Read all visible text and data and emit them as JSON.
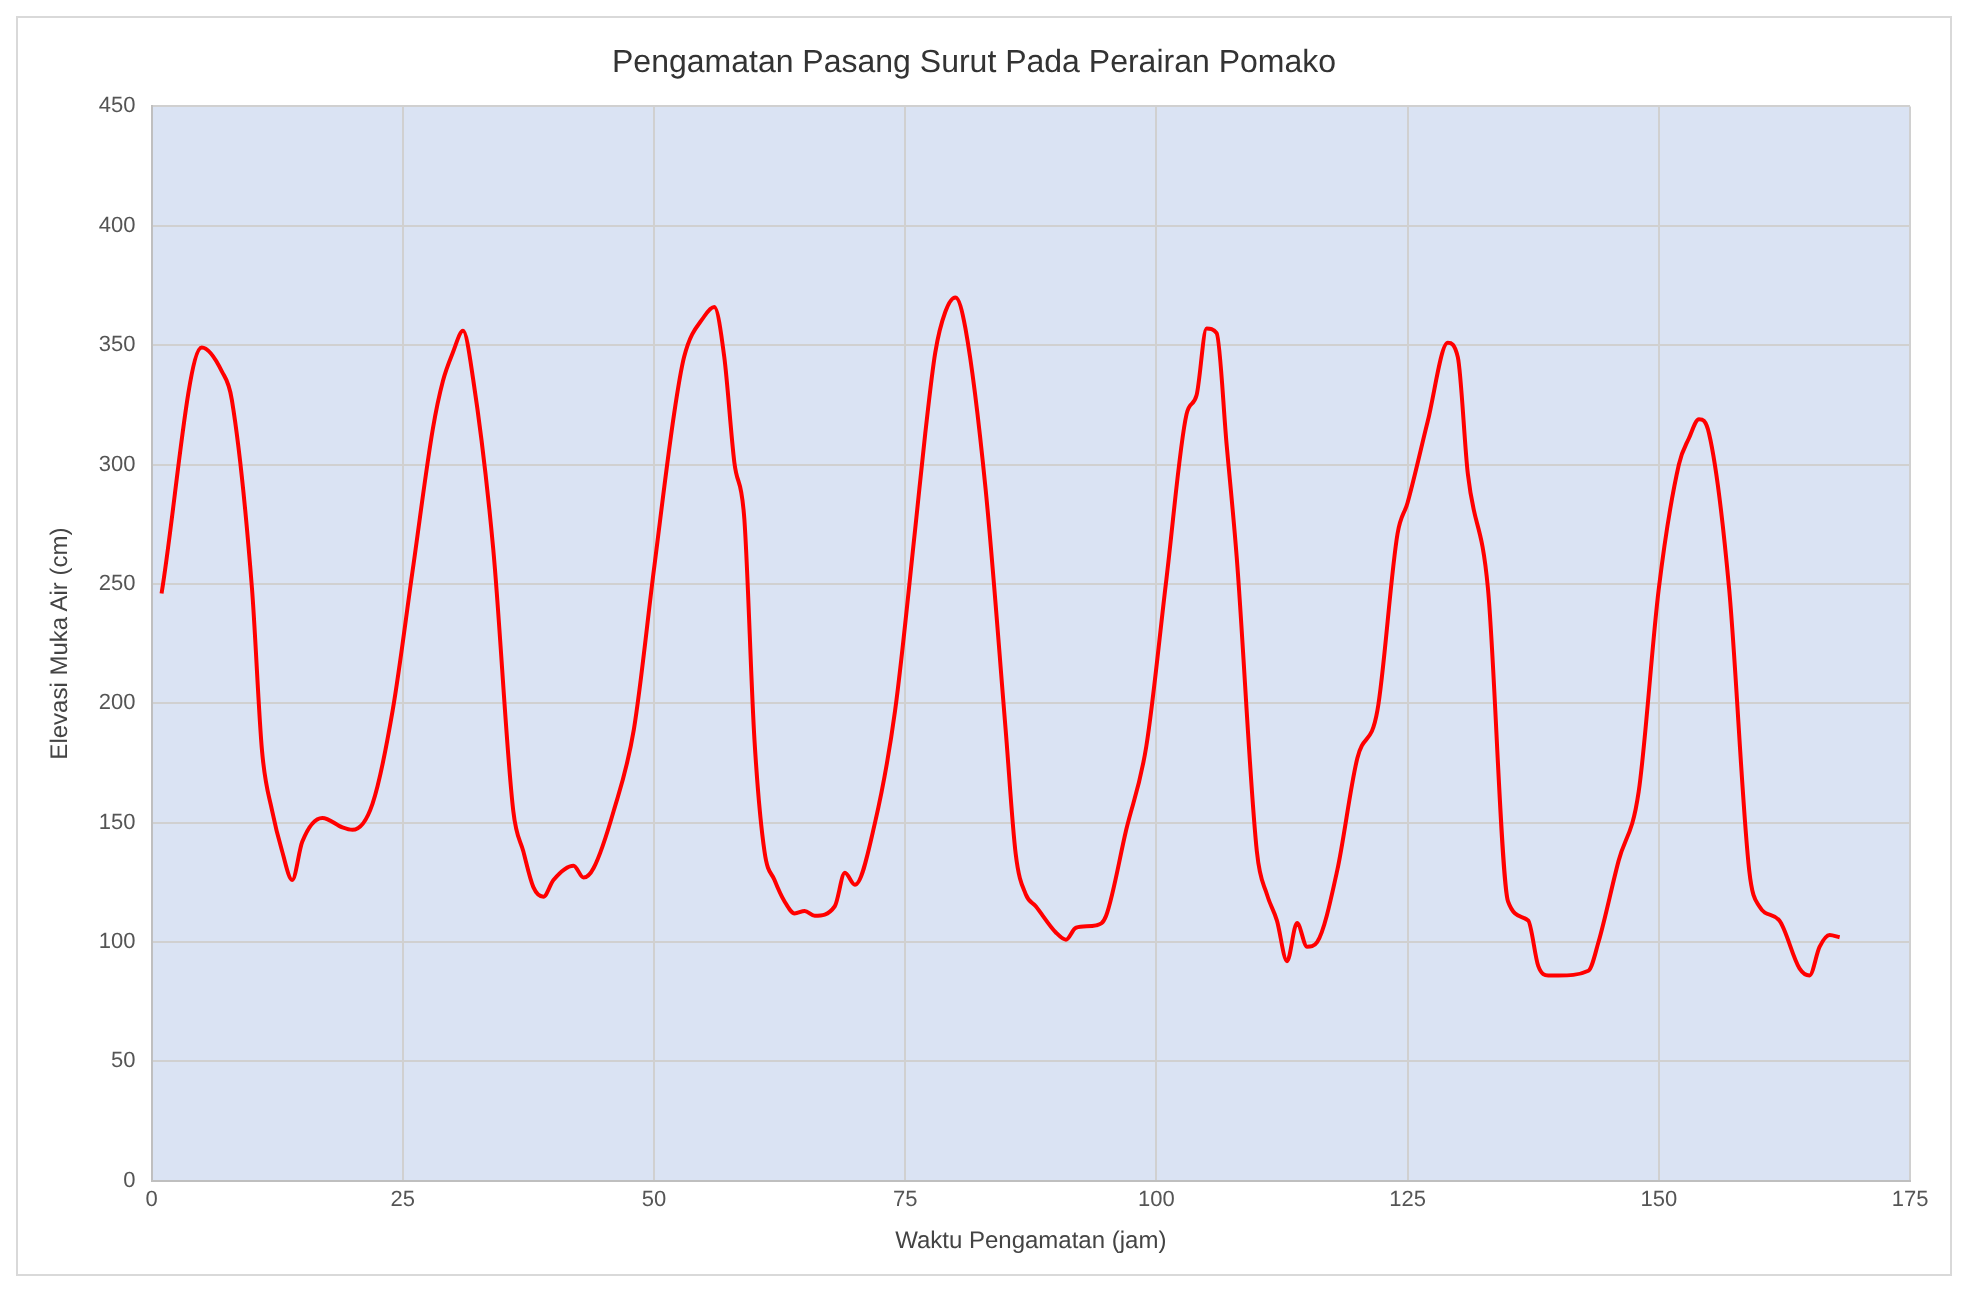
{
  "chart_data": {
    "type": "line",
    "title": "Pengamatan Pasang Surut Pada Perairan Pomako",
    "xlabel": "Waktu Pengamatan (jam)",
    "ylabel": "Elevasi Muka Air (cm)",
    "xlim": [
      0,
      175
    ],
    "xticks": [
      0,
      25,
      50,
      75,
      100,
      125,
      150,
      175
    ],
    "ylim": [
      0,
      450
    ],
    "yticks": [
      0,
      50,
      100,
      150,
      200,
      250,
      300,
      350,
      400,
      450
    ],
    "grid": true,
    "marker": "none",
    "line_style": "solid",
    "series": [
      {
        "color": "#ff0000",
        "x": [
          1,
          5,
          7,
          8,
          10,
          11,
          12,
          13,
          14,
          15,
          17,
          19,
          20,
          22,
          24,
          26,
          28,
          29,
          30,
          31,
          32,
          34,
          36,
          37,
          38,
          39,
          40,
          42,
          43,
          44,
          46,
          48,
          50,
          52,
          53,
          55,
          56,
          57,
          58,
          59,
          60,
          61,
          62,
          63,
          64,
          65,
          66,
          68,
          69,
          70,
          72,
          74,
          76,
          77,
          78,
          79,
          80,
          81,
          83,
          85,
          86,
          87,
          88,
          90,
          91,
          92,
          94,
          95,
          97,
          99,
          101,
          103,
          104,
          105,
          106,
          107,
          108,
          110,
          111,
          112,
          113,
          114,
          115,
          116,
          118,
          120,
          122,
          124,
          125,
          127,
          129,
          130,
          131,
          133,
          135,
          137,
          138,
          139,
          140,
          143,
          144,
          146,
          148,
          150,
          152,
          153,
          154,
          155,
          157,
          159,
          160,
          162,
          164,
          165,
          166,
          167,
          168
        ],
        "values": [
          246,
          349,
          339,
          327,
          248,
          180,
          155,
          138,
          126,
          142,
          152,
          148,
          147,
          158,
          197,
          256,
          315,
          335,
          347,
          356,
          336,
          265,
          155,
          138,
          123,
          119,
          126,
          132,
          127,
          131,
          155,
          189,
          256,
          321,
          345,
          362,
          366,
          345,
          301,
          277,
          185,
          138,
          126,
          117,
          112,
          113,
          111,
          115,
          129,
          124,
          150,
          197,
          273,
          313,
          347,
          364,
          370,
          357,
          290,
          189,
          137,
          120,
          115,
          104,
          101,
          106,
          107,
          111,
          147,
          182,
          252,
          321,
          329,
          357,
          355,
          308,
          261,
          138,
          120,
          109,
          92,
          108,
          98,
          100,
          130,
          177,
          197,
          271,
          284,
          318,
          351,
          345,
          296,
          248,
          117,
          109,
          90,
          86,
          86,
          88,
          100,
          134,
          163,
          248,
          300,
          311,
          319,
          313,
          248,
          130,
          115,
          109,
          89,
          86,
          98,
          103,
          102
        ]
      }
    ]
  }
}
